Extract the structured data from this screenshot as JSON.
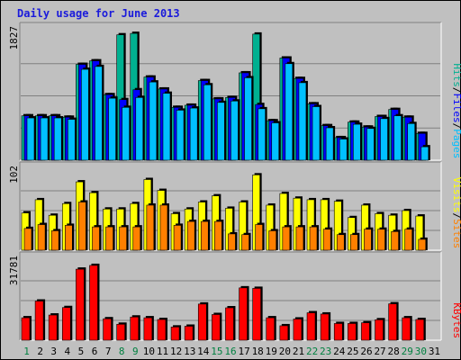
{
  "colors": {
    "pages": "#00c0ff",
    "files": "#0000ff",
    "hits": "#00b090",
    "visits": "#ffff00",
    "sites": "#ff8000",
    "kbytes": "#ff0000",
    "sep": "#000000",
    "weekend": "#008040",
    "weekday": "#000000",
    "title": "#1a1adb"
  },
  "chart_data": {
    "type": "bar",
    "title": "Daily usage for June 2013",
    "categories": [
      "1",
      "2",
      "3",
      "4",
      "5",
      "6",
      "7",
      "8",
      "9",
      "10",
      "11",
      "12",
      "13",
      "14",
      "15",
      "16",
      "17",
      "18",
      "19",
      "20",
      "21",
      "22",
      "23",
      "24",
      "25",
      "26",
      "27",
      "28",
      "29",
      "30",
      "31"
    ],
    "weekend_days": [
      "1",
      "8",
      "9",
      "15",
      "16",
      "22",
      "23",
      "29",
      "30"
    ],
    "panels": [
      {
        "id": "top",
        "max_label": "1827",
        "ymax": 1827,
        "legend": [
          {
            "name": "Pages",
            "color_key": "pages"
          },
          {
            "name": "Files",
            "color_key": "files"
          },
          {
            "name": "Hits",
            "color_key": "hits"
          }
        ],
        "series": [
          {
            "name": "Hits",
            "values": [
              630,
              630,
              630,
              610,
              1360,
              1410,
              930,
              1780,
              1800,
              1180,
              1010,
              750,
              780,
              1130,
              870,
              890,
              1240,
              1790,
              560,
              1450,
              1160,
              800,
              490,
              320,
              540,
              470,
              620,
              720,
              610,
              380,
              0
            ]
          },
          {
            "name": "Files",
            "values": [
              630,
              630,
              630,
              610,
              1360,
              1410,
              930,
              860,
              1000,
              1180,
              1010,
              750,
              780,
              1130,
              870,
              890,
              1240,
              790,
              560,
              1450,
              1160,
              800,
              490,
              320,
              540,
              470,
              620,
              720,
              610,
              380,
              0
            ]
          },
          {
            "name": "Pages",
            "values": [
              600,
              600,
              600,
              580,
              1290,
              1330,
              880,
              750,
              890,
              1110,
              950,
              710,
              740,
              1070,
              820,
              840,
              1170,
              730,
              530,
              1370,
              1100,
              760,
              460,
              300,
              510,
              450,
              590,
              630,
              520,
              190,
              0
            ]
          }
        ]
      },
      {
        "id": "middle",
        "max_label": "102",
        "ymax": 102,
        "legend": [
          {
            "name": "Sites",
            "color_key": "sites"
          },
          {
            "name": "Visits",
            "color_key": "visits"
          }
        ],
        "series": [
          {
            "name": "Visits",
            "values": [
              48,
              65,
              45,
              60,
              88,
              74,
              53,
              53,
              60,
              91,
              77,
              47,
              53,
              62,
              70,
              54,
              62,
              97,
              58,
              73,
              67,
              65,
              65,
              63,
              42,
              58,
              47,
              45,
              51,
              44,
              0
            ]
          },
          {
            "name": "Sites",
            "values": [
              28,
              33,
              25,
              32,
              62,
              30,
              30,
              30,
              30,
              58,
              58,
              32,
              37,
              37,
              37,
              21,
              20,
              33,
              25,
              30,
              30,
              30,
              27,
              20,
              20,
              27,
              27,
              24,
              27,
              14,
              0
            ]
          }
        ]
      },
      {
        "id": "bottom",
        "max_label": "31781",
        "ymax": 31781,
        "legend": [
          {
            "name": "KBytes",
            "color_key": "kbytes"
          }
        ],
        "series": [
          {
            "name": "KBytes",
            "values": [
              9000,
              15700,
              10100,
              13100,
              28500,
              30000,
              8600,
              6400,
              9300,
              9000,
              8300,
              5300,
              5600,
              14500,
              10300,
              13000,
              21000,
              20800,
              9000,
              5800,
              8500,
              11000,
              10500,
              6700,
              6700,
              7000,
              8200,
              14600,
              9000,
              8300,
              0
            ]
          }
        ]
      }
    ]
  }
}
